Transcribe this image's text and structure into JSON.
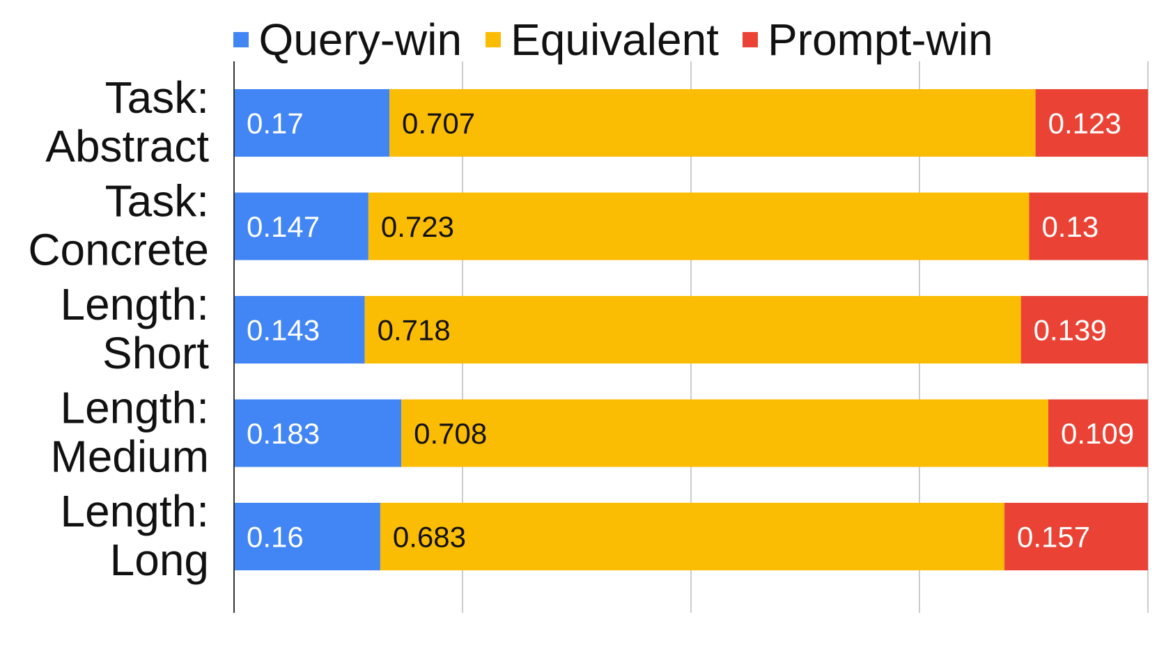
{
  "chart_data": {
    "type": "bar",
    "orientation": "horizontal",
    "stacked": true,
    "title": "",
    "xlabel": "",
    "ylabel": "",
    "xlim": [
      0,
      1
    ],
    "grid": true,
    "legend_position": "top",
    "categories": [
      [
        "Task:",
        "Abstract"
      ],
      [
        "Task:",
        "Concrete"
      ],
      [
        "Length:",
        "Short"
      ],
      [
        "Length:",
        "Medium"
      ],
      [
        "Length:",
        "Long"
      ]
    ],
    "series": [
      {
        "name": "Query-win",
        "color": "#4285F4",
        "label_color": "#ffffff",
        "values": [
          0.17,
          0.147,
          0.143,
          0.183,
          0.16
        ]
      },
      {
        "name": "Equivalent",
        "color": "#FBBC04",
        "label_color": "#111111",
        "values": [
          0.707,
          0.723,
          0.718,
          0.708,
          0.683
        ]
      },
      {
        "name": "Prompt-win",
        "color": "#EA4335",
        "label_color": "#ffffff",
        "values": [
          0.123,
          0.13,
          0.139,
          0.109,
          0.157
        ]
      }
    ]
  }
}
